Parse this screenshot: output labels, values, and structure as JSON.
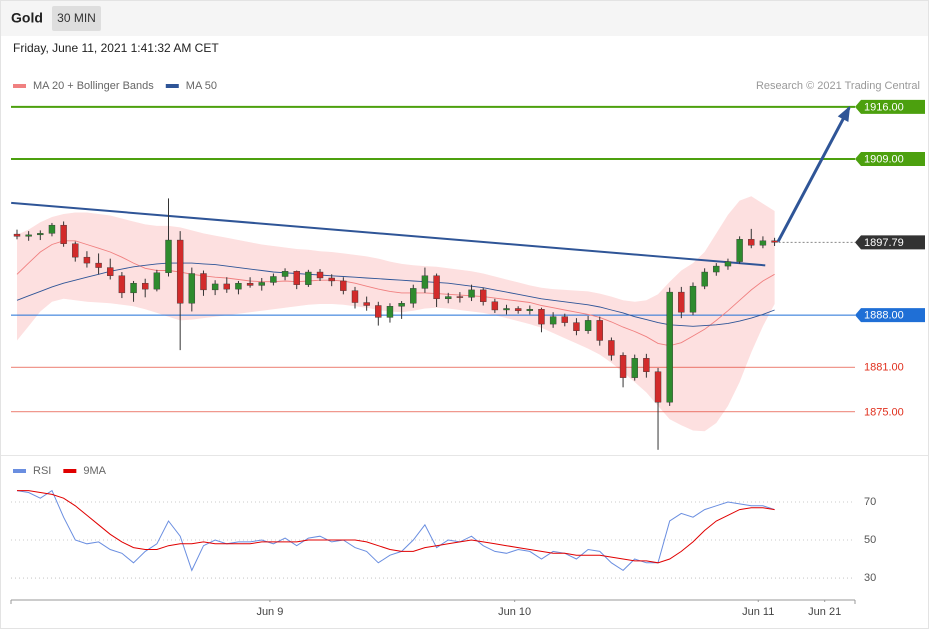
{
  "header": {
    "title": "Gold",
    "interval": "30 MIN",
    "date": "Friday, June 11, 2021 1:41:32 AM CET"
  },
  "chart_data": [
    {
      "type": "candlestick",
      "credit": "Research © 2021 Trading Central",
      "xlim": [
        -0.6,
        71.9
      ],
      "ylim": [
        1869.2,
        1925.4
      ],
      "up_color": "#2e8b2e",
      "down_color": "#d22b2b",
      "candles": {
        "open": [
          1898.9,
          1898.6,
          1898.8,
          1899.0,
          1900.1,
          1897.6,
          1895.8,
          1895.0,
          1894.4,
          1893.3,
          1891.0,
          1892.3,
          1891.5,
          1893.7,
          1898.1,
          1889.6,
          1893.6,
          1891.4,
          1892.2,
          1891.5,
          1892.3,
          1892.0,
          1892.4,
          1893.2,
          1893.9,
          1892.1,
          1893.8,
          1893.0,
          1892.6,
          1891.3,
          1889.7,
          1889.3,
          1887.7,
          1889.2,
          1889.6,
          1891.6,
          1893.3,
          1890.2,
          1890.5,
          1890.4,
          1891.4,
          1889.8,
          1888.7,
          1888.9,
          1888.6,
          1888.8,
          1886.8,
          1887.8,
          1887.0,
          1885.9,
          1887.3,
          1884.6,
          1882.6,
          1879.6,
          1882.2,
          1880.4,
          1876.3,
          1891.1,
          1888.4,
          1891.9,
          1893.8,
          1894.6,
          1895.2,
          1898.2,
          1897.4,
          1898.0
        ],
        "high": [
          1899.5,
          1899.3,
          1899.4,
          1900.4,
          1900.6,
          1897.9,
          1896.6,
          1896.3,
          1895.6,
          1893.8,
          1892.6,
          1892.9,
          1894.1,
          1903.7,
          1899.3,
          1894.4,
          1894.0,
          1892.7,
          1893.1,
          1892.6,
          1893.1,
          1893.0,
          1893.6,
          1894.3,
          1894.0,
          1894.1,
          1894.2,
          1893.5,
          1893.1,
          1891.8,
          1890.5,
          1889.8,
          1889.6,
          1889.9,
          1892.1,
          1894.4,
          1893.6,
          1891.0,
          1891.1,
          1892.1,
          1891.7,
          1890.2,
          1889.4,
          1889.2,
          1889.3,
          1889.0,
          1888.4,
          1888.2,
          1887.6,
          1887.9,
          1887.8,
          1885.0,
          1883.0,
          1882.7,
          1882.8,
          1880.9,
          1891.7,
          1891.8,
          1892.4,
          1894.3,
          1895.0,
          1895.6,
          1898.6,
          1899.6,
          1898.6,
          1898.4
        ],
        "low": [
          1898.2,
          1898.0,
          1898.1,
          1898.6,
          1897.2,
          1895.2,
          1894.4,
          1893.5,
          1892.8,
          1890.3,
          1889.8,
          1890.4,
          1891.2,
          1893.2,
          1883.3,
          1888.5,
          1890.6,
          1890.7,
          1891.0,
          1890.8,
          1891.7,
          1891.3,
          1892.0,
          1892.7,
          1891.5,
          1891.8,
          1892.6,
          1891.9,
          1890.8,
          1888.9,
          1888.6,
          1886.6,
          1887.0,
          1887.5,
          1889.0,
          1891.0,
          1889.1,
          1889.6,
          1889.7,
          1889.9,
          1889.3,
          1888.3,
          1888.1,
          1888.2,
          1888.1,
          1885.7,
          1886.3,
          1886.5,
          1885.3,
          1885.5,
          1883.9,
          1881.9,
          1878.3,
          1879.2,
          1879.6,
          1869.9,
          1875.8,
          1887.6,
          1888.0,
          1891.5,
          1893.3,
          1894.1,
          1894.9,
          1897.0,
          1897.0,
          1897.3
        ],
        "close": [
          1898.6,
          1898.8,
          1899.0,
          1900.1,
          1897.6,
          1895.8,
          1895.0,
          1894.4,
          1893.3,
          1891.0,
          1892.3,
          1891.5,
          1893.7,
          1898.1,
          1889.6,
          1893.6,
          1891.4,
          1892.2,
          1891.5,
          1892.3,
          1892.0,
          1892.4,
          1893.2,
          1893.9,
          1892.1,
          1893.8,
          1893.0,
          1892.6,
          1891.3,
          1889.7,
          1889.3,
          1887.7,
          1889.2,
          1889.6,
          1891.6,
          1893.3,
          1890.2,
          1890.5,
          1890.4,
          1891.4,
          1889.8,
          1888.7,
          1888.9,
          1888.6,
          1888.8,
          1886.8,
          1887.8,
          1887.0,
          1885.9,
          1887.3,
          1884.6,
          1882.6,
          1879.6,
          1882.2,
          1880.4,
          1876.3,
          1891.1,
          1888.4,
          1891.9,
          1893.8,
          1894.6,
          1895.2,
          1898.2,
          1897.4,
          1898.0,
          1897.79
        ]
      },
      "series": [
        {
          "name": "MA 20 + Bollinger Bands",
          "color": "#f08080",
          "band_color": "#fde0e0",
          "values": [
            1893.5,
            1895.0,
            1896.5,
            1897.5,
            1898.0,
            1898.0,
            1897.5,
            1897.0,
            1896.5,
            1895.8,
            1895.0,
            1894.3,
            1894.0,
            1894.0,
            1893.8,
            1893.5,
            1893.3,
            1893.1,
            1893.0,
            1892.8,
            1892.6,
            1892.5,
            1892.5,
            1892.6,
            1892.5,
            1892.6,
            1892.7,
            1892.7,
            1892.6,
            1892.3,
            1891.9,
            1891.5,
            1891.2,
            1891.0,
            1891.0,
            1891.0,
            1890.9,
            1890.8,
            1890.7,
            1890.6,
            1890.5,
            1890.3,
            1890.1,
            1889.9,
            1889.7,
            1889.3,
            1889.0,
            1888.7,
            1888.4,
            1888.1,
            1887.7,
            1887.1,
            1886.4,
            1885.8,
            1885.1,
            1884.2,
            1883.9,
            1884.3,
            1885.2,
            1886.1,
            1887.3,
            1888.6,
            1890.0,
            1891.4,
            1892.6,
            1893.5
          ],
          "upper": [
            1898.8,
            1899.5,
            1900.5,
            1901.2,
            1901.6,
            1901.8,
            1901.8,
            1901.6,
            1901.4,
            1901.0,
            1900.6,
            1900.2,
            1900.0,
            1900.0,
            1899.8,
            1899.4,
            1899.0,
            1898.7,
            1898.4,
            1898.1,
            1897.8,
            1897.5,
            1897.3,
            1897.1,
            1896.9,
            1896.8,
            1896.6,
            1896.5,
            1896.3,
            1896.1,
            1895.9,
            1895.6,
            1895.2,
            1894.9,
            1894.7,
            1894.6,
            1894.5,
            1894.3,
            1894.1,
            1893.9,
            1893.6,
            1893.2,
            1892.8,
            1892.4,
            1892.0,
            1891.7,
            1891.5,
            1891.4,
            1891.3,
            1891.2,
            1890.9,
            1890.5,
            1890.0,
            1889.8,
            1890.0,
            1890.8,
            1892.5,
            1894.0,
            1895.0,
            1896.5,
            1899.0,
            1901.5,
            1903.4,
            1904.0,
            1903.0,
            1902.0
          ],
          "lower": [
            1884.6,
            1886.5,
            1888.5,
            1889.8,
            1890.2,
            1890.0,
            1889.8,
            1889.7,
            1889.6,
            1889.4,
            1889.2,
            1888.8,
            1888.3,
            1887.8,
            1887.3,
            1887.4,
            1887.6,
            1887.8,
            1888.0,
            1888.2,
            1888.4,
            1888.6,
            1888.8,
            1889.0,
            1889.2,
            1889.4,
            1889.5,
            1889.5,
            1889.4,
            1889.2,
            1889.0,
            1888.7,
            1888.5,
            1888.4,
            1888.6,
            1888.9,
            1889.0,
            1888.9,
            1888.7,
            1888.5,
            1888.3,
            1888.0,
            1887.6,
            1887.2,
            1886.8,
            1886.3,
            1885.6,
            1884.9,
            1884.2,
            1883.5,
            1882.7,
            1881.6,
            1880.3,
            1879.0,
            1877.6,
            1875.8,
            1874.0,
            1873.2,
            1872.5,
            1872.4,
            1873.5,
            1875.8,
            1879.0,
            1883.0,
            1886.5,
            1889.5
          ]
        },
        {
          "name": "MA 50",
          "color": "#2f5597",
          "values": [
            1890.0,
            1890.6,
            1891.2,
            1891.8,
            1892.3,
            1892.7,
            1893.1,
            1893.5,
            1893.9,
            1894.2,
            1894.5,
            1894.7,
            1894.9,
            1895.0,
            1895.0,
            1895.0,
            1894.9,
            1894.8,
            1894.6,
            1894.4,
            1894.2,
            1894.0,
            1893.8,
            1893.7,
            1893.6,
            1893.5,
            1893.4,
            1893.3,
            1893.2,
            1893.1,
            1893.0,
            1892.9,
            1892.8,
            1892.7,
            1892.6,
            1892.5,
            1892.4,
            1892.3,
            1892.1,
            1891.9,
            1891.7,
            1891.4,
            1891.1,
            1890.8,
            1890.5,
            1890.2,
            1890.0,
            1889.8,
            1889.6,
            1889.4,
            1889.1,
            1888.7,
            1888.3,
            1887.8,
            1887.4,
            1887.0,
            1886.7,
            1886.6,
            1886.5,
            1886.6,
            1886.7,
            1886.9,
            1887.2,
            1887.6,
            1888.1,
            1888.7
          ]
        }
      ],
      "levels": [
        {
          "value": 1916,
          "label": "1916.00",
          "color": "#4ca00e",
          "style": "box",
          "line": "solid",
          "width": 2
        },
        {
          "value": 1909,
          "label": "1909.00",
          "color": "#4ca00e",
          "style": "box",
          "line": "solid",
          "width": 2
        },
        {
          "value": 1897.79,
          "label": "1897.79",
          "color": "#333333",
          "style": "box",
          "line": "dotted",
          "width": 1
        },
        {
          "value": 1888,
          "label": "1888.00",
          "color": "#1f6fd6",
          "style": "box",
          "line": "solid",
          "width": 1
        },
        {
          "value": 1881,
          "label": "1881.00",
          "color": "#e0301e",
          "style": "text",
          "line": "solid",
          "width": 0.6
        },
        {
          "value": 1875,
          "label": "1875.00",
          "color": "#e0301e",
          "style": "text",
          "line": "solid",
          "width": 0.6
        }
      ],
      "trendlines": [
        {
          "x": [
            -0.5,
            64.2
          ],
          "y": [
            1903.1,
            1894.7
          ],
          "color": "#2f5597",
          "arrow": false
        },
        {
          "x": [
            65.3,
            71.4
          ],
          "y": [
            1897.9,
            1915.9
          ],
          "color": "#2f5597",
          "arrow": true
        }
      ]
    },
    {
      "type": "line",
      "xlim": [
        -0.6,
        71.9
      ],
      "ylim": [
        19.5,
        92.1
      ],
      "yticks": [
        30,
        50,
        70
      ],
      "grid": "dotted",
      "xticks": [
        {
          "value": 21.7,
          "label": "Jun 9"
        },
        {
          "value": 42.7,
          "label": "Jun 10"
        },
        {
          "value": 63.6,
          "label": "Jun 11"
        },
        {
          "value": 69.3,
          "label": "Jun 21"
        }
      ],
      "series": [
        {
          "name": "RSI",
          "color": "#6a8ee0",
          "values": [
            76,
            75,
            72,
            76,
            62,
            50,
            48,
            49,
            45,
            43,
            38,
            44,
            48,
            60,
            52,
            34,
            47,
            50,
            48,
            49,
            49,
            50,
            48,
            51,
            47,
            51,
            52,
            49,
            50,
            46,
            44,
            38,
            42,
            44,
            50,
            58,
            46,
            50,
            49,
            52,
            47,
            44,
            43,
            45,
            44,
            40,
            44,
            43,
            40,
            45,
            44,
            38,
            34,
            40,
            38,
            38,
            60,
            64,
            62,
            66,
            68,
            70,
            69,
            68,
            68,
            66
          ]
        },
        {
          "name": "9MA",
          "color": "#e00000",
          "values": [
            76,
            76,
            75,
            74,
            72,
            68,
            63,
            58,
            53,
            49,
            46,
            45,
            45,
            47,
            48,
            48,
            49,
            48,
            48,
            48,
            48,
            49,
            49,
            49,
            49,
            50,
            50,
            50,
            50,
            50,
            49,
            47,
            45,
            44,
            44,
            46,
            47,
            48,
            49,
            50,
            49,
            48,
            47,
            46,
            45,
            44,
            43,
            43,
            42,
            42,
            42,
            41,
            40,
            39,
            39,
            38,
            40,
            44,
            49,
            55,
            60,
            63,
            66,
            67,
            67,
            66
          ]
        }
      ]
    }
  ]
}
